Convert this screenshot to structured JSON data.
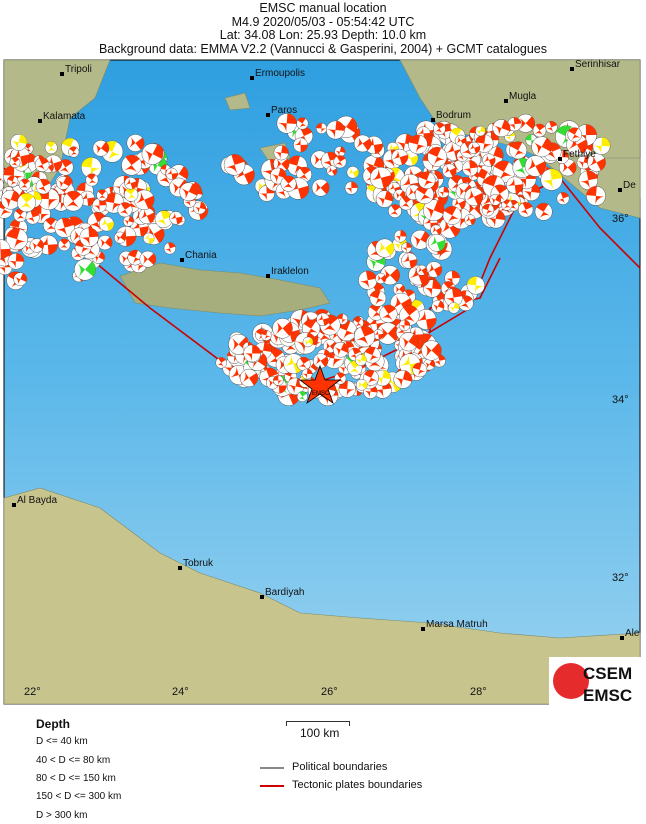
{
  "header": {
    "title": "EMSC manual location",
    "event": "M4.9  2020/05/03 - 05:54:42 UTC",
    "location": "Lat: 34.08    Lon:  25.93     Depth:  10.0 km",
    "background": "Background data: EMMA V2.2 (Vannucci & Gasperini, 2004) + GCMT catalogues"
  },
  "map": {
    "lon_ticks": [
      "22°",
      "24°",
      "26°",
      "28°"
    ],
    "lat_ticks": [
      "36°",
      "34°",
      "32°"
    ],
    "cities": [
      "Tripoli",
      "Kalamata",
      "Ermoupolis",
      "Paros",
      "Bodrum",
      "Mugla",
      "Serinhisar",
      "Fethiye",
      "De",
      "Chania",
      "Iraklelon",
      "Al Bayda",
      "Tobruk",
      "Bardiyah",
      "Marsa Matruh",
      "Ale"
    ],
    "epicenter_label": "EMSC",
    "colors": {
      "sea": "#4fb3e6",
      "land": "#a8b98a",
      "beachball": "#ff3300",
      "tectonic": "#cc0000",
      "shallow": "#ff3300",
      "intermediate": "#ffee00",
      "deep": "#33dd33"
    }
  },
  "scale": {
    "label": "100 km"
  },
  "legend": {
    "depth_title": "Depth",
    "depth_classes": [
      "D <= 40 km",
      "40 < D <= 80 km",
      "80 < D <= 150 km",
      "150 < D <= 300 km",
      "D > 300 km"
    ],
    "political": "Political boundaries",
    "tectonic": "Tectonic plates boundaries"
  },
  "logo": {
    "text1": "CSEM",
    "text2": "EMSC"
  }
}
